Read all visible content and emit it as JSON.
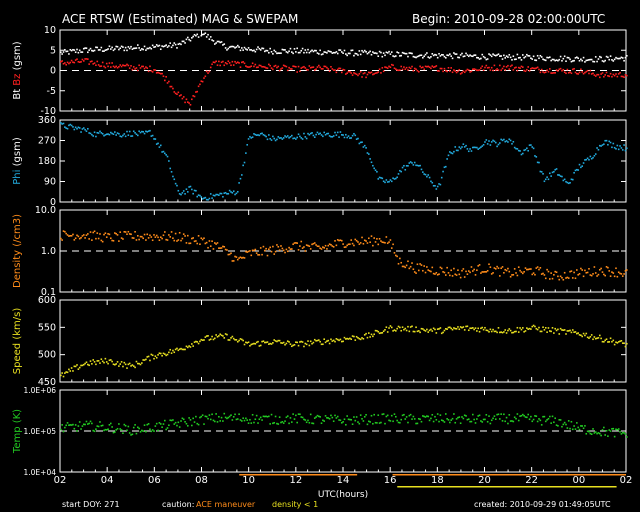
{
  "header": {
    "title": "ACE RTSW (Estimated) MAG & SWEPAM",
    "begin": "Begin: 2010-09-28 02:00:00UTC"
  },
  "footer": {
    "start_doy": "start DOY: 271",
    "caution": "caution:",
    "ace_maneuver": "ACE maneuver",
    "density_lt1": "density < 1",
    "created": "created: 2010-09-29 01:49:05UTC"
  },
  "colors": {
    "bt": "#ffffff",
    "bz": "#ff2020",
    "phi": "#22aadd",
    "density": "#ff8c1a",
    "speed": "#e8e020",
    "temp": "#22cc22",
    "maneuver": "#ff8c1a",
    "density_lt1_flag": "#e8e020"
  },
  "chart_data": {
    "type": "scatter",
    "x_axis": {
      "label": "UTC(hours)",
      "ticks": [
        "02",
        "04",
        "06",
        "08",
        "10",
        "12",
        "14",
        "16",
        "18",
        "20",
        "22",
        "00",
        "02"
      ],
      "range_hours": [
        0,
        24
      ]
    },
    "flags": {
      "maneuver_hours": [
        [
          7.6,
          12.6
        ],
        [
          14.1,
          24.0
        ]
      ],
      "density_lt1_hours": [
        [
          14.3,
          23.6
        ]
      ]
    },
    "panels": [
      {
        "id": "mag",
        "ylabel_parts": [
          "Bt",
          "Bz",
          "(gsm)"
        ],
        "ylim": [
          -10,
          10
        ],
        "ticks": [
          "10",
          "5",
          "0",
          "-5",
          "-10"
        ],
        "scale": "linear",
        "reference_line": 0,
        "series": [
          {
            "name": "Bt",
            "points": [
              [
                0,
                4.5
              ],
              [
                1,
                5.2
              ],
              [
                2,
                5.5
              ],
              [
                3,
                5.8
              ],
              [
                4,
                6.0
              ],
              [
                5,
                6.5
              ],
              [
                5.5,
                8.0
              ],
              [
                6,
                9.5
              ],
              [
                6.5,
                7.5
              ],
              [
                7,
                6.0
              ],
              [
                8,
                5.5
              ],
              [
                9,
                5.0
              ],
              [
                10,
                5.0
              ],
              [
                11,
                4.8
              ],
              [
                12,
                4.6
              ],
              [
                13,
                4.4
              ],
              [
                14,
                4.2
              ],
              [
                15,
                4.0
              ],
              [
                16,
                3.9
              ],
              [
                17,
                3.8
              ],
              [
                18,
                3.6
              ],
              [
                19,
                3.5
              ],
              [
                20,
                3.4
              ],
              [
                21,
                3.2
              ],
              [
                22,
                3.0
              ],
              [
                23,
                3.0
              ],
              [
                24,
                3.3
              ]
            ]
          },
          {
            "name": "Bz",
            "points": [
              [
                0,
                2.0
              ],
              [
                1,
                2.5
              ],
              [
                2,
                1.5
              ],
              [
                3,
                1.0
              ],
              [
                4,
                0.5
              ],
              [
                4.5,
                -2.0
              ],
              [
                5,
                -6.0
              ],
              [
                5.5,
                -8.0
              ],
              [
                6,
                -2.0
              ],
              [
                6.5,
                2.0
              ],
              [
                7,
                2.0
              ],
              [
                8,
                1.5
              ],
              [
                9,
                1.0
              ],
              [
                10,
                0.5
              ],
              [
                11,
                0.8
              ],
              [
                12,
                0.0
              ],
              [
                13,
                -1.0
              ],
              [
                14,
                1.0
              ],
              [
                15,
                0.5
              ],
              [
                16,
                0.8
              ],
              [
                17,
                0.0
              ],
              [
                18,
                0.8
              ],
              [
                19,
                1.0
              ],
              [
                20,
                0.5
              ],
              [
                21,
                0.2
              ],
              [
                22,
                0.0
              ],
              [
                23,
                -1.0
              ],
              [
                24,
                -0.8
              ]
            ]
          }
        ]
      },
      {
        "id": "phi",
        "ylabel_parts": [
          "Phi",
          "(gsm)"
        ],
        "ylim": [
          0,
          360
        ],
        "ticks": [
          "360",
          "270",
          "180",
          "90",
          "0"
        ],
        "scale": "linear",
        "reference_line": null,
        "series": [
          {
            "name": "Phi",
            "points": [
              [
                0,
                340
              ],
              [
                0.5,
                330
              ],
              [
                1,
                320
              ],
              [
                1.5,
                300
              ],
              [
                2,
                310
              ],
              [
                2.5,
                300
              ],
              [
                3,
                305
              ],
              [
                3.5,
                300
              ],
              [
                3.8,
                310
              ],
              [
                4.5,
                200
              ],
              [
                5,
                40
              ],
              [
                5.5,
                60
              ],
              [
                6,
                20
              ],
              [
                6.5,
                30
              ],
              [
                7,
                40
              ],
              [
                7.5,
                50
              ],
              [
                8,
                290
              ],
              [
                8.5,
                300
              ],
              [
                9,
                280
              ],
              [
                10,
                290
              ],
              [
                11,
                300
              ],
              [
                12,
                300
              ],
              [
                12.5,
                290
              ],
              [
                13,
                230
              ],
              [
                13.5,
                100
              ],
              [
                14,
                90
              ],
              [
                14.5,
                150
              ],
              [
                15,
                180
              ],
              [
                15.5,
                120
              ],
              [
                16,
                60
              ],
              [
                16.5,
                220
              ],
              [
                17,
                250
              ],
              [
                17.5,
                230
              ],
              [
                18,
                270
              ],
              [
                18.5,
                260
              ],
              [
                19,
                280
              ],
              [
                19.5,
                220
              ],
              [
                20,
                250
              ],
              [
                20.5,
                100
              ],
              [
                21,
                140
              ],
              [
                21.5,
                80
              ],
              [
                22,
                160
              ],
              [
                22.5,
                200
              ],
              [
                23,
                270
              ],
              [
                23.5,
                250
              ],
              [
                24,
                240
              ]
            ]
          }
        ]
      },
      {
        "id": "density",
        "ylabel_parts": [
          "Density",
          "(/cm3)"
        ],
        "ylim": [
          0.1,
          10.0
        ],
        "ticks": [
          "10.0",
          "1.0",
          "0.1"
        ],
        "scale": "log",
        "reference_line": 1.0,
        "series": [
          {
            "name": "Density",
            "points": [
              [
                0,
                2.5
              ],
              [
                1,
                2.6
              ],
              [
                2,
                2.2
              ],
              [
                3,
                2.4
              ],
              [
                4,
                2.4
              ],
              [
                5,
                2.3
              ],
              [
                5.5,
                2.0
              ],
              [
                6,
                1.8
              ],
              [
                6.5,
                1.5
              ],
              [
                7,
                1.0
              ],
              [
                7.5,
                0.6
              ],
              [
                8,
                0.9
              ],
              [
                9,
                1.1
              ],
              [
                10,
                1.4
              ],
              [
                11,
                1.2
              ],
              [
                12,
                1.7
              ],
              [
                13,
                1.8
              ],
              [
                13.8,
                2.0
              ],
              [
                14.3,
                0.6
              ],
              [
                15,
                0.4
              ],
              [
                16,
                0.35
              ],
              [
                17,
                0.3
              ],
              [
                18,
                0.4
              ],
              [
                19,
                0.3
              ],
              [
                20,
                0.35
              ],
              [
                21,
                0.25
              ],
              [
                22,
                0.3
              ],
              [
                23,
                0.35
              ],
              [
                24,
                0.3
              ]
            ]
          }
        ]
      },
      {
        "id": "speed",
        "ylabel_parts": [
          "Speed",
          "(km/s)"
        ],
        "ylim": [
          450,
          600
        ],
        "ticks": [
          "600",
          "550",
          "500",
          "450"
        ],
        "scale": "linear",
        "reference_line": null,
        "series": [
          {
            "name": "Speed",
            "points": [
              [
                0,
                462
              ],
              [
                1,
                485
              ],
              [
                2,
                490
              ],
              [
                3,
                480
              ],
              [
                4,
                500
              ],
              [
                5,
                510
              ],
              [
                6,
                530
              ],
              [
                7,
                535
              ],
              [
                8,
                520
              ],
              [
                9,
                525
              ],
              [
                10,
                520
              ],
              [
                11,
                525
              ],
              [
                12,
                530
              ],
              [
                13,
                535
              ],
              [
                14,
                550
              ],
              [
                15,
                548
              ],
              [
                16,
                545
              ],
              [
                17,
                550
              ],
              [
                18,
                548
              ],
              [
                19,
                545
              ],
              [
                20,
                550
              ],
              [
                21,
                545
              ],
              [
                22,
                540
              ],
              [
                23,
                530
              ],
              [
                24,
                520
              ]
            ]
          }
        ]
      },
      {
        "id": "temp",
        "ylabel_parts": [
          "Temp",
          "(K)"
        ],
        "ylim": [
          10000,
          1000000
        ],
        "ticks": [
          "1.0E+06",
          "1.0E+05",
          "1.0E+04"
        ],
        "scale": "log",
        "reference_line": 100000,
        "series": [
          {
            "name": "Temp",
            "points": [
              [
                0,
                120000
              ],
              [
                1,
                140000
              ],
              [
                2,
                130000
              ],
              [
                3,
                110000
              ],
              [
                4,
                130000
              ],
              [
                5,
                160000
              ],
              [
                6,
                200000
              ],
              [
                7,
                220000
              ],
              [
                8,
                210000
              ],
              [
                9,
                200000
              ],
              [
                10,
                210000
              ],
              [
                11,
                200000
              ],
              [
                12,
                190000
              ],
              [
                13,
                200000
              ],
              [
                14,
                210000
              ],
              [
                15,
                200000
              ],
              [
                16,
                210000
              ],
              [
                17,
                205000
              ],
              [
                18,
                200000
              ],
              [
                19,
                210000
              ],
              [
                20,
                200000
              ],
              [
                21,
                180000
              ],
              [
                22,
                120000
              ],
              [
                23,
                100000
              ],
              [
                24,
                90000
              ]
            ]
          }
        ]
      }
    ]
  }
}
